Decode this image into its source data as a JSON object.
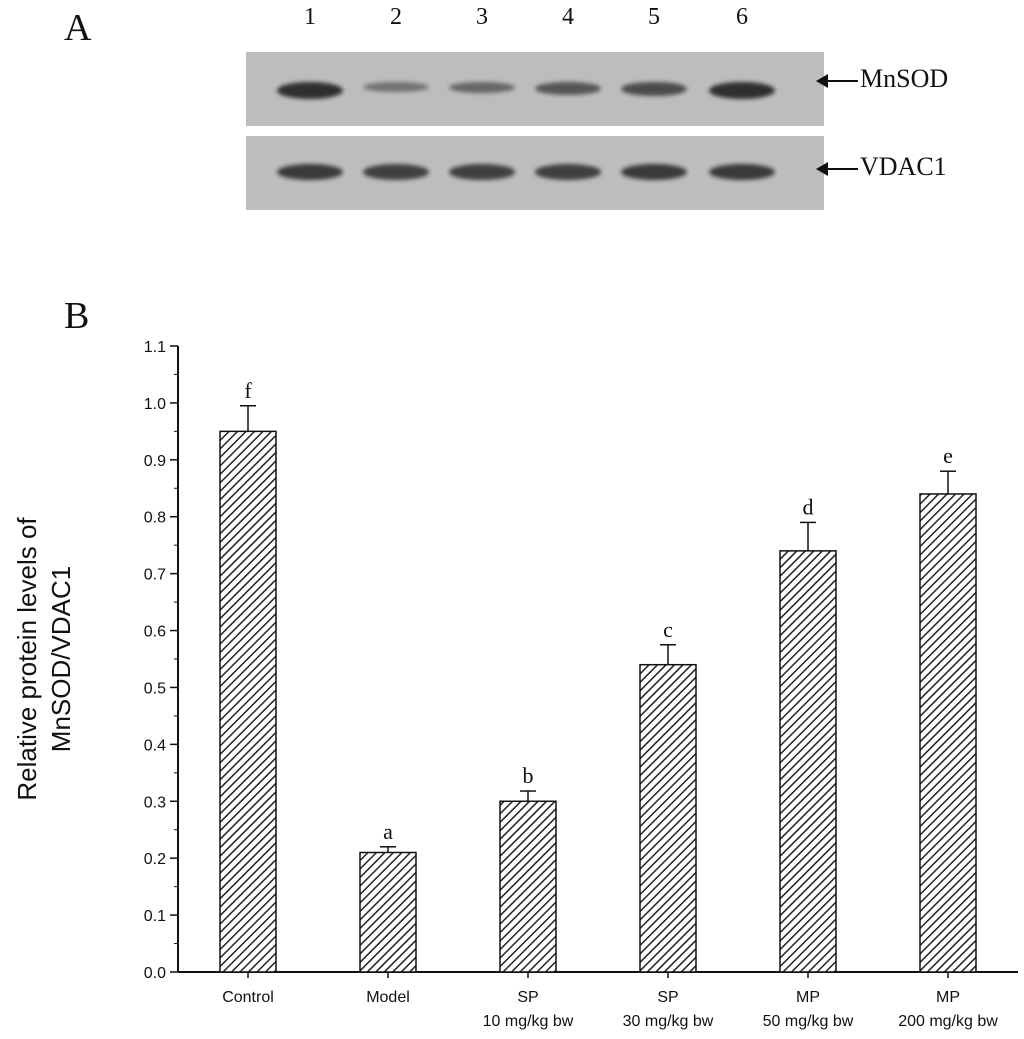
{
  "panel_a": {
    "letter": "A",
    "lanes": [
      "1",
      "2",
      "3",
      "4",
      "5",
      "6"
    ],
    "blots": [
      {
        "label": "MnSOD",
        "band_intensity": [
          0.95,
          0.35,
          0.45,
          0.6,
          0.7,
          0.95
        ]
      },
      {
        "label": "VDAC1",
        "band_intensity": [
          0.85,
          0.8,
          0.8,
          0.8,
          0.85,
          0.85
        ]
      }
    ]
  },
  "panel_b": {
    "letter": "B"
  },
  "chart_data": {
    "type": "bar",
    "categories": [
      [
        "Control",
        ""
      ],
      [
        "Model",
        ""
      ],
      [
        "SP",
        "10 mg/kg bw"
      ],
      [
        "SP",
        "30 mg/kg bw"
      ],
      [
        "MP",
        "50 mg/kg bw"
      ],
      [
        "MP",
        "200 mg/kg bw"
      ]
    ],
    "values": [
      0.95,
      0.21,
      0.3,
      0.54,
      0.74,
      0.84
    ],
    "errors": [
      0.045,
      0.01,
      0.018,
      0.035,
      0.05,
      0.04
    ],
    "significance": [
      "f",
      "a",
      "b",
      "c",
      "d",
      "e"
    ],
    "title": "",
    "xlabel": "",
    "ylabel": [
      "Relative protein levels of",
      "MnSOD/VDAC1"
    ],
    "ylim": [
      0.0,
      1.1
    ],
    "yticks": [
      "0.0",
      "0.1",
      "0.2",
      "0.3",
      "0.4",
      "0.5",
      "0.6",
      "0.7",
      "0.8",
      "0.9",
      "1.0",
      "1.1"
    ],
    "bar_fill": "hatched",
    "grid": false
  }
}
